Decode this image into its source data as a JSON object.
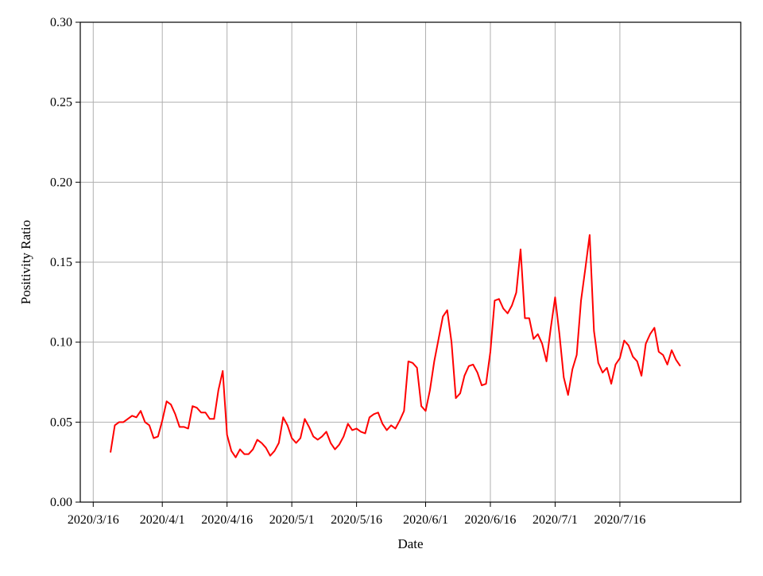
{
  "chart_data": {
    "type": "line",
    "title": "",
    "xlabel": "Date",
    "ylabel": "Positivity Ratio",
    "ylim": [
      0,
      0.3
    ],
    "xlim": [
      "2020-03-13",
      "2020-08-13"
    ],
    "grid": true,
    "line_color": "#ff0000",
    "y_ticks": [
      {
        "value": 0.0,
        "label": "0.00"
      },
      {
        "value": 0.05,
        "label": "0.05"
      },
      {
        "value": 0.1,
        "label": "0.10"
      },
      {
        "value": 0.15,
        "label": "0.15"
      },
      {
        "value": 0.2,
        "label": "0.20"
      },
      {
        "value": 0.25,
        "label": "0.25"
      },
      {
        "value": 0.3,
        "label": "0.30"
      }
    ],
    "x_ticks": [
      {
        "date": "2020-03-16",
        "label": "2020/3/16"
      },
      {
        "date": "2020-04-01",
        "label": "2020/4/1"
      },
      {
        "date": "2020-04-16",
        "label": "2020/4/16"
      },
      {
        "date": "2020-05-01",
        "label": "2020/5/1"
      },
      {
        "date": "2020-05-16",
        "label": "2020/5/16"
      },
      {
        "date": "2020-06-01",
        "label": "2020/6/1"
      },
      {
        "date": "2020-06-16",
        "label": "2020/6/16"
      },
      {
        "date": "2020-07-01",
        "label": "2020/7/1"
      },
      {
        "date": "2020-07-16",
        "label": "2020/7/16"
      }
    ],
    "series": [
      {
        "start_date": "2020-03-20",
        "values": [
          0.031,
          0.048,
          0.05,
          0.05,
          0.052,
          0.054,
          0.053,
          0.057,
          0.05,
          0.048,
          0.04,
          0.041,
          0.051,
          0.063,
          0.061,
          0.055,
          0.047,
          0.047,
          0.046,
          0.06,
          0.059,
          0.056,
          0.056,
          0.052,
          0.052,
          0.07,
          0.082,
          0.042,
          0.032,
          0.028,
          0.033,
          0.03,
          0.03,
          0.033,
          0.039,
          0.037,
          0.034,
          0.029,
          0.032,
          0.037,
          0.053,
          0.048,
          0.04,
          0.037,
          0.04,
          0.052,
          0.047,
          0.041,
          0.039,
          0.041,
          0.044,
          0.037,
          0.033,
          0.036,
          0.041,
          0.049,
          0.045,
          0.046,
          0.044,
          0.043,
          0.053,
          0.055,
          0.056,
          0.049,
          0.045,
          0.048,
          0.046,
          0.051,
          0.057,
          0.088,
          0.087,
          0.084,
          0.06,
          0.057,
          0.07,
          0.088,
          0.102,
          0.116,
          0.12,
          0.1,
          0.065,
          0.068,
          0.079,
          0.085,
          0.086,
          0.081,
          0.073,
          0.074,
          0.094,
          0.126,
          0.127,
          0.121,
          0.118,
          0.123,
          0.131,
          0.158,
          0.115,
          0.115,
          0.102,
          0.105,
          0.099,
          0.088,
          0.109,
          0.128,
          0.105,
          0.078,
          0.067,
          0.083,
          0.092,
          0.126,
          0.146,
          0.167,
          0.107,
          0.087,
          0.081,
          0.084,
          0.074,
          0.086,
          0.09,
          0.101,
          0.098,
          0.091,
          0.088,
          0.079,
          0.099,
          0.105,
          0.109,
          0.094,
          0.092,
          0.086,
          0.095,
          0.089,
          0.085
        ]
      }
    ]
  }
}
